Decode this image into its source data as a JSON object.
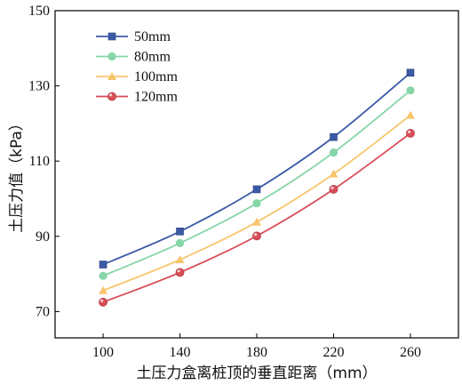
{
  "chart_data": {
    "type": "line",
    "x": [
      100,
      140,
      180,
      220,
      260
    ],
    "series": [
      {
        "name": "50mm",
        "color": "#3b5aa6",
        "marker": "square",
        "values": [
          82.5,
          91.3,
          102.5,
          116.4,
          133.5
        ]
      },
      {
        "name": "80mm",
        "color": "#86d6a8",
        "marker": "circle",
        "values": [
          79.5,
          88.2,
          98.8,
          112.3,
          128.8
        ]
      },
      {
        "name": "100mm",
        "color": "#f7c56c",
        "marker": "triangle",
        "values": [
          75.6,
          83.8,
          93.8,
          106.6,
          122.2
        ]
      },
      {
        "name": "120mm",
        "color": "#d94d57",
        "marker": "sphere",
        "values": [
          72.5,
          80.4,
          90.1,
          102.5,
          117.4
        ]
      }
    ],
    "xlabel": "土压力盒离桩顶的垂直距离（mm）",
    "ylabel": "土压力值（kPa）",
    "xlim": [
      75,
      285
    ],
    "ylim": [
      63,
      150
    ],
    "xticks": [
      "100",
      "140",
      "180",
      "220",
      "260"
    ],
    "yticks": [
      "70",
      "90",
      "110",
      "130",
      "150"
    ],
    "legend_position": "top-left",
    "grid": false
  }
}
